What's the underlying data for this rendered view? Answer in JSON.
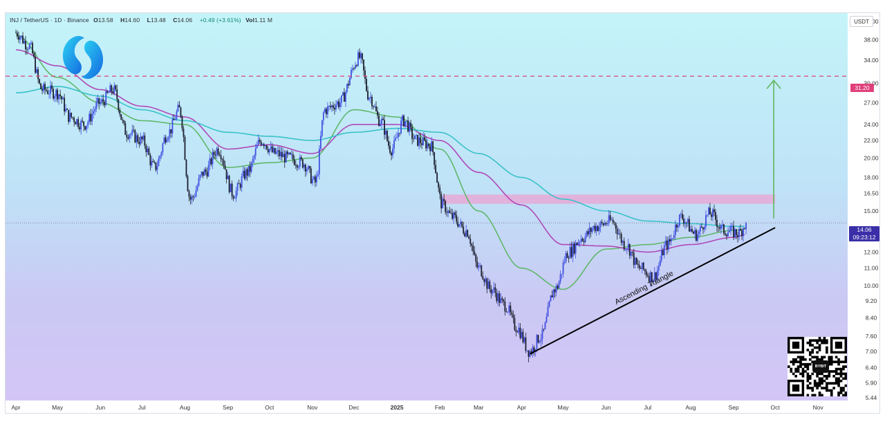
{
  "header": {
    "symbol": "INJ / TetherUS · 1D · Binance",
    "open_label": "O",
    "open": "13.58",
    "high_label": "H",
    "high": "14.60",
    "low_label": "L",
    "low": "13.48",
    "close_label": "C",
    "close": "14.06",
    "change": "+0.49 (+3.61%)",
    "volume_label": "Vol",
    "volume": "1.11 M"
  },
  "axis_unit": "USDT",
  "current_price": {
    "value": "14.06",
    "countdown": "09:23:12"
  },
  "target_price": {
    "value": "31.20"
  },
  "annotation": "Ascending Triangle",
  "qr_badge": "BYBIT",
  "colors": {
    "up": "#3f4ee0",
    "down": "#1b1d2e",
    "sma_green": "#5fb86a",
    "sma_purple": "#b048b8",
    "sma_teal": "#39c2c8",
    "target_line": "#e0407a",
    "resistance_zone": "#e9a6d5",
    "arrow": "#6aba6a",
    "price_badge": "#3a2fa8"
  },
  "icons": {
    "logo": "injective-logo-icon",
    "qr": "qr-code-icon"
  },
  "chart_data": {
    "type": "candlestick",
    "title": "INJ / TetherUS · 1D · Binance",
    "ylabel": "USDT",
    "y_scale": "log",
    "ylim": [
      5.44,
      42.0
    ],
    "y_ticks": [
      "42.00",
      "38.00",
      "34.00",
      "30.00",
      "27.00",
      "24.00",
      "22.00",
      "20.00",
      "18.00",
      "16.50",
      "15.00",
      "12.00",
      "11.00",
      "10.00",
      "9.20",
      "8.40",
      "7.60",
      "7.00",
      "6.40",
      "5.90",
      "5.44"
    ],
    "x_ticks": [
      "Apr",
      "May",
      "Jun",
      "Jul",
      "Aug",
      "Sep",
      "Oct",
      "Nov",
      "Dec",
      "2025",
      "Feb",
      "Mar",
      "Apr",
      "May",
      "Jun",
      "Jul",
      "Aug",
      "Sep",
      "Oct",
      "Nov"
    ],
    "price_path": [
      [
        "2024-04-01",
        39.5
      ],
      [
        "2024-04-10",
        37.0
      ],
      [
        "2024-04-20",
        29.0
      ],
      [
        "2024-05-01",
        28.5
      ],
      [
        "2024-05-10",
        25.0
      ],
      [
        "2024-05-20",
        24.0
      ],
      [
        "2024-06-01",
        27.0
      ],
      [
        "2024-06-10",
        29.0
      ],
      [
        "2024-06-20",
        23.0
      ],
      [
        "2024-07-01",
        22.0
      ],
      [
        "2024-07-10",
        19.0
      ],
      [
        "2024-07-20",
        23.0
      ],
      [
        "2024-07-28",
        26.0
      ],
      [
        "2024-08-05",
        16.0
      ],
      [
        "2024-08-15",
        18.5
      ],
      [
        "2024-08-25",
        21.0
      ],
      [
        "2024-09-05",
        16.5
      ],
      [
        "2024-09-15",
        18.5
      ],
      [
        "2024-09-25",
        22.0
      ],
      [
        "2024-10-05",
        20.5
      ],
      [
        "2024-10-15",
        20.0
      ],
      [
        "2024-10-25",
        19.5
      ],
      [
        "2024-11-03",
        17.5
      ],
      [
        "2024-11-10",
        26.0
      ],
      [
        "2024-11-20",
        27.0
      ],
      [
        "2024-12-05",
        34.5
      ],
      [
        "2024-12-12",
        28.0
      ],
      [
        "2024-12-20",
        24.5
      ],
      [
        "2024-12-28",
        21.0
      ],
      [
        "2025-01-06",
        24.5
      ],
      [
        "2025-01-15",
        22.0
      ],
      [
        "2025-01-25",
        21.5
      ],
      [
        "2025-02-03",
        15.5
      ],
      [
        "2025-02-10",
        14.5
      ],
      [
        "2025-02-20",
        13.5
      ],
      [
        "2025-03-01",
        11.0
      ],
      [
        "2025-03-10",
        9.8
      ],
      [
        "2025-03-20",
        9.0
      ],
      [
        "2025-03-28",
        8.0
      ],
      [
        "2025-04-07",
        7.0
      ],
      [
        "2025-04-15",
        7.6
      ],
      [
        "2025-04-25",
        9.8
      ],
      [
        "2025-05-05",
        12.0
      ],
      [
        "2025-05-15",
        13.0
      ],
      [
        "2025-05-25",
        13.8
      ],
      [
        "2025-06-05",
        14.2
      ],
      [
        "2025-06-15",
        12.5
      ],
      [
        "2025-06-25",
        11.0
      ],
      [
        "2025-07-05",
        10.5
      ],
      [
        "2025-07-15",
        12.5
      ],
      [
        "2025-07-25",
        14.5
      ],
      [
        "2025-08-05",
        13.2
      ],
      [
        "2025-08-15",
        14.8
      ],
      [
        "2025-08-25",
        13.5
      ],
      [
        "2025-09-05",
        13.3
      ],
      [
        "2025-09-10",
        14.06
      ]
    ],
    "moving_averages": [
      {
        "color": "#5fb86a",
        "values": [
          [
            "2024-04-01",
            39.0
          ],
          [
            "2024-05-01",
            31.0
          ],
          [
            "2024-06-01",
            27.0
          ],
          [
            "2024-07-01",
            24.5
          ],
          [
            "2024-08-01",
            24.0
          ],
          [
            "2024-09-01",
            19.0
          ],
          [
            "2024-10-01",
            19.5
          ],
          [
            "2024-11-01",
            20.0
          ],
          [
            "2024-12-01",
            26.0
          ],
          [
            "2025-01-01",
            25.0
          ],
          [
            "2025-02-01",
            21.0
          ],
          [
            "2025-03-01",
            15.0
          ],
          [
            "2025-04-01",
            11.0
          ],
          [
            "2025-05-01",
            9.8
          ],
          [
            "2025-06-01",
            12.2
          ],
          [
            "2025-07-01",
            12.5
          ],
          [
            "2025-08-01",
            13.0
          ],
          [
            "2025-09-01",
            13.5
          ],
          [
            "2025-09-10",
            13.6
          ]
        ]
      },
      {
        "color": "#b048b8",
        "values": [
          [
            "2024-04-01",
            36.0
          ],
          [
            "2024-05-01",
            33.0
          ],
          [
            "2024-06-01",
            29.0
          ],
          [
            "2024-07-01",
            26.5
          ],
          [
            "2024-08-01",
            25.0
          ],
          [
            "2024-09-01",
            21.0
          ],
          [
            "2024-10-01",
            21.5
          ],
          [
            "2024-11-01",
            20.5
          ],
          [
            "2024-12-01",
            24.0
          ],
          [
            "2025-01-01",
            24.0
          ],
          [
            "2025-02-01",
            22.0
          ],
          [
            "2025-03-01",
            18.5
          ],
          [
            "2025-04-01",
            15.5
          ],
          [
            "2025-05-01",
            12.5
          ],
          [
            "2025-06-01",
            12.4
          ],
          [
            "2025-07-01",
            12.0
          ],
          [
            "2025-08-01",
            12.5
          ],
          [
            "2025-09-01",
            13.0
          ],
          [
            "2025-09-10",
            13.2
          ]
        ]
      },
      {
        "color": "#39c2c8",
        "values": [
          [
            "2024-04-01",
            28.5
          ],
          [
            "2024-05-01",
            29.5
          ],
          [
            "2024-06-01",
            28.0
          ],
          [
            "2024-07-01",
            26.0
          ],
          [
            "2024-08-01",
            24.5
          ],
          [
            "2024-09-01",
            23.0
          ],
          [
            "2024-10-01",
            22.5
          ],
          [
            "2024-11-01",
            22.0
          ],
          [
            "2024-12-01",
            23.0
          ],
          [
            "2025-01-01",
            23.5
          ],
          [
            "2025-02-01",
            23.0
          ],
          [
            "2025-03-01",
            20.5
          ],
          [
            "2025-04-01",
            18.0
          ],
          [
            "2025-05-01",
            16.0
          ],
          [
            "2025-06-01",
            15.0
          ],
          [
            "2025-07-01",
            14.2
          ],
          [
            "2025-08-01",
            14.0
          ],
          [
            "2025-09-01",
            13.8
          ],
          [
            "2025-09-10",
            13.8
          ]
        ]
      }
    ],
    "horizontal_line": {
      "value": 31.2,
      "style": "dashed"
    },
    "current_price_line": {
      "value": 14.06,
      "style": "dotted"
    },
    "resistance_zone": {
      "from": "2025-02-03",
      "to": "2025-10-01",
      "low": 15.6,
      "high": 16.4
    },
    "trendline": {
      "start": [
        "2025-04-07",
        6.9
      ],
      "end": [
        "2025-10-01",
        13.7
      ]
    },
    "target_arrow": {
      "date": "2025-09-30",
      "from": 14.4,
      "to": 30.5
    }
  }
}
